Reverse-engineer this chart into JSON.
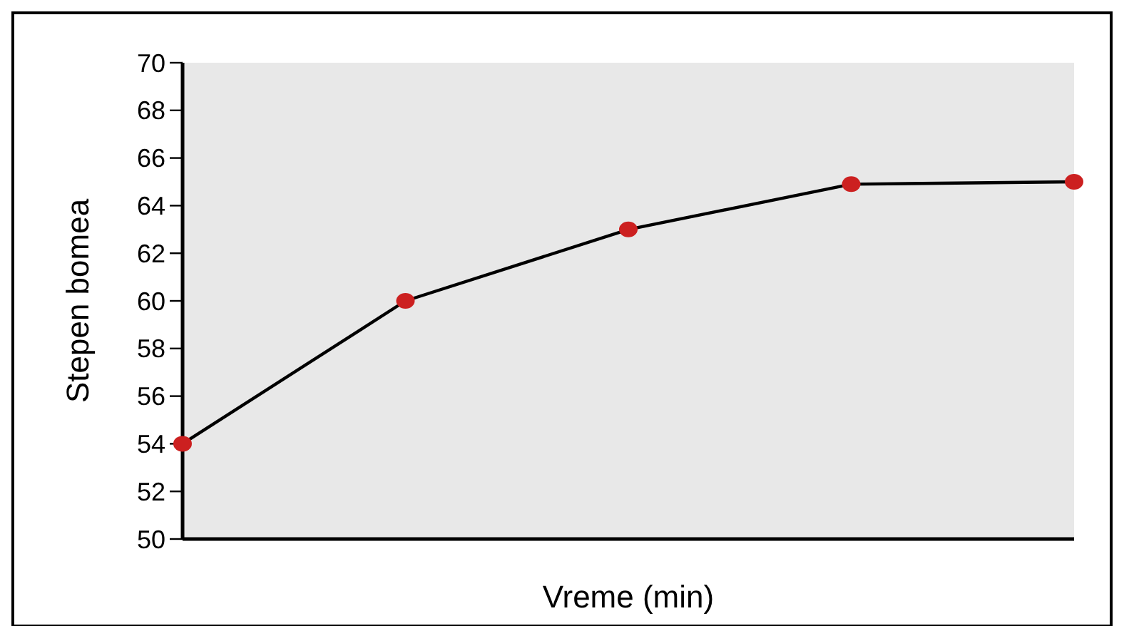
{
  "chart_data": {
    "type": "line",
    "xlabel": "Vreme (min)",
    "ylabel": "Stepen bomea",
    "categories": [
      null,
      null,
      null,
      null,
      null
    ],
    "series": [
      {
        "color": "#cc2020",
        "values": [
          54,
          60,
          63,
          64.9,
          65
        ]
      }
    ],
    "ylim": [
      50,
      70
    ],
    "yticks": [
      50,
      52,
      54,
      56,
      58,
      60,
      62,
      64,
      66,
      68,
      70
    ],
    "grid": false,
    "marker": "circle",
    "line_style": "solid"
  }
}
